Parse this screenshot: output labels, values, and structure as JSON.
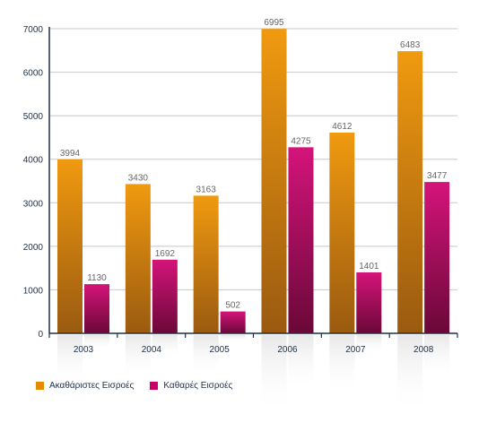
{
  "chart_data": {
    "type": "bar",
    "categories": [
      "2003",
      "2004",
      "2005",
      "2006",
      "2007",
      "2008"
    ],
    "series": [
      {
        "name": "Ακαθάριστες Εισροές",
        "color": "#e68a00",
        "values": [
          3994,
          3430,
          3163,
          6995,
          4612,
          6483
        ]
      },
      {
        "name": "Καθαρές Εισροές",
        "color": "#cc0066",
        "values": [
          1130,
          1692,
          502,
          4275,
          1401,
          3477
        ]
      }
    ],
    "y_ticks": [
      "0",
      "1000",
      "2000",
      "3000",
      "4000",
      "5000",
      "6000",
      "7000"
    ],
    "ylim": [
      0,
      7000
    ],
    "grid": true,
    "legend_position": "bottom-left"
  }
}
